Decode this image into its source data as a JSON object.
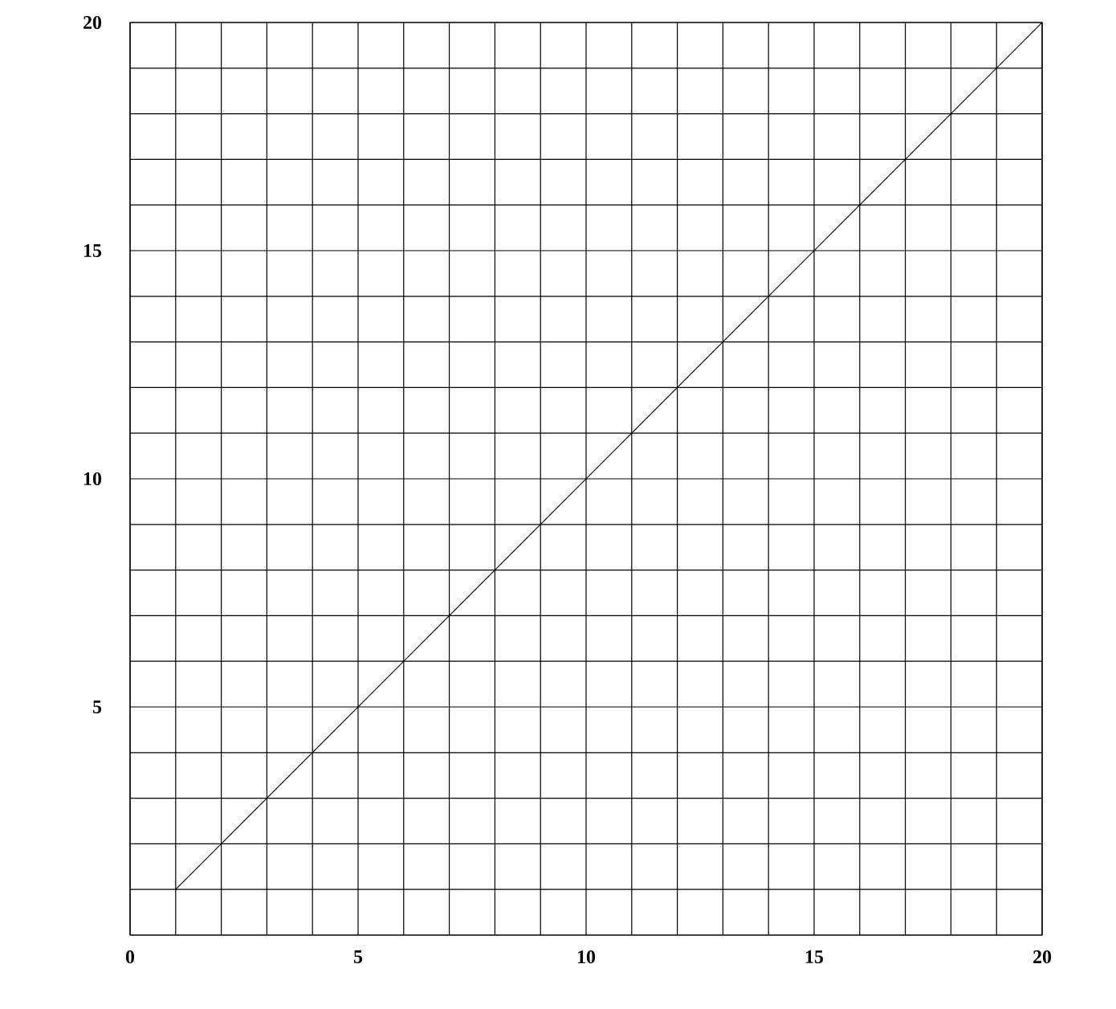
{
  "chart_data": {
    "type": "line",
    "x": [
      1,
      20
    ],
    "series": [
      {
        "color": "#000000",
        "values": [
          1,
          20
        ]
      }
    ],
    "xlim": [
      0,
      20
    ],
    "ylim": [
      0,
      20
    ],
    "xticks": [
      0,
      {
        "value": 1,
        "label": null
      },
      {
        "value": 2,
        "label": null
      },
      {
        "value": 3,
        "label": null
      },
      {
        "value": 4,
        "label": null
      },
      5,
      {
        "value": 6,
        "label": null
      },
      {
        "value": 7,
        "label": null
      },
      {
        "value": 8,
        "label": null
      },
      {
        "value": 9,
        "label": null
      },
      10,
      {
        "value": 11,
        "label": null
      },
      {
        "value": 12,
        "label": null
      },
      {
        "value": 13,
        "label": null
      },
      {
        "value": 14,
        "label": null
      },
      15,
      {
        "value": 16,
        "label": null
      },
      {
        "value": 17,
        "label": null
      },
      {
        "value": 18,
        "label": null
      },
      {
        "value": 19,
        "label": null
      },
      20
    ],
    "yticks": [
      {
        "value": 0,
        "label": null
      },
      {
        "value": 1,
        "label": null
      },
      {
        "value": 2,
        "label": null
      },
      {
        "value": 3,
        "label": null
      },
      {
        "value": 4,
        "label": null
      },
      5,
      {
        "value": 6,
        "label": null
      },
      {
        "value": 7,
        "label": null
      },
      {
        "value": 8,
        "label": null
      },
      {
        "value": 9,
        "label": null
      },
      10,
      {
        "value": 11,
        "label": null
      },
      {
        "value": 12,
        "label": null
      },
      {
        "value": 13,
        "label": null
      },
      {
        "value": 14,
        "label": null
      },
      15,
      {
        "value": 16,
        "label": null
      },
      {
        "value": 17,
        "label": null
      },
      {
        "value": 18,
        "label": null
      },
      {
        "value": 19,
        "label": null
      },
      20
    ],
    "grid": true,
    "marker": "none",
    "line_style": "solid"
  }
}
